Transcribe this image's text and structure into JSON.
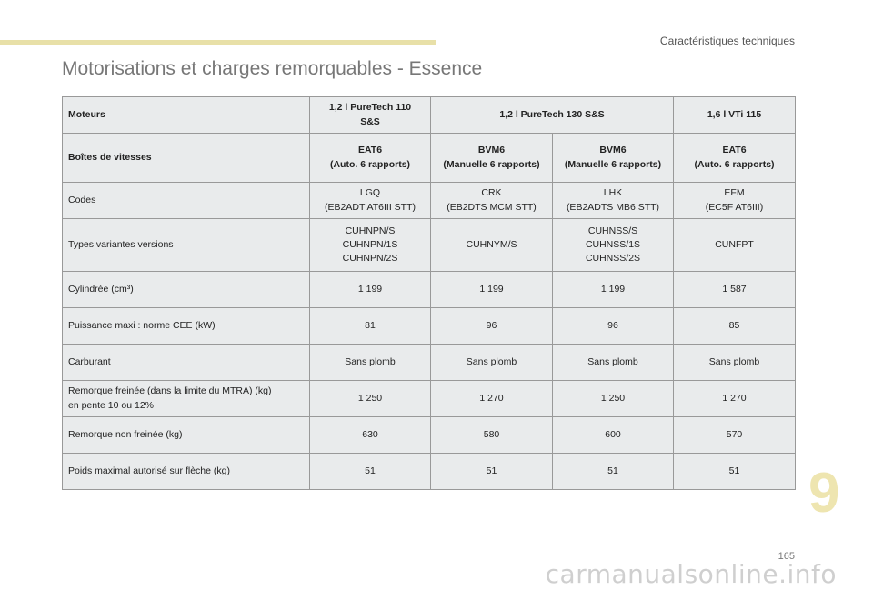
{
  "header": {
    "section_title": "Caractéristiques techniques",
    "page_title": "Motorisations et charges remorquables - Essence"
  },
  "table": {
    "rows": [
      {
        "label": "Moteurs",
        "values": [
          "1,2 l PureTech 110\nS&S",
          "1,2 l PureTech 130 S&S",
          "1,6 l VTi 115"
        ],
        "bold": true
      },
      {
        "label": "Boîtes de vitesses",
        "values": [
          "EAT6\n(Auto. 6 rapports)",
          "BVM6\n(Manuelle 6 rapports)",
          "BVM6\n(Manuelle 6 rapports)",
          "EAT6\n(Auto. 6 rapports)"
        ],
        "bold": true
      },
      {
        "label": "Codes",
        "values": [
          "LGQ\n(EB2ADT AT6III STT)",
          "CRK\n(EB2DTS MCM STT)",
          "LHK\n(EB2ADTS MB6 STT)",
          "EFM\n(EC5F AT6III)"
        ]
      },
      {
        "label": "Types variantes versions",
        "values": [
          "CUHNPN/S\nCUHNPN/1S\nCUHNPN/2S",
          "CUHNYM/S",
          "CUHNSS/S\nCUHNSS/1S\nCUHNSS/2S",
          "CUNFPT"
        ]
      },
      {
        "label": "Cylindrée (cm³)",
        "values": [
          "1 199",
          "1 199",
          "1 199",
          "1 587"
        ]
      },
      {
        "label": "Puissance maxi : norme CEE (kW)",
        "values": [
          "81",
          "96",
          "96",
          "85"
        ]
      },
      {
        "label": "Carburant",
        "values": [
          "Sans plomb",
          "Sans plomb",
          "Sans plomb",
          "Sans plomb"
        ]
      },
      {
        "label": "Remorque freinée (dans la limite du MTRA) (kg)\nen pente 10 ou 12%",
        "values": [
          "1 250",
          "1 270",
          "1 250",
          "1 270"
        ]
      },
      {
        "label": "Remorque non freinée (kg)",
        "values": [
          "630",
          "580",
          "600",
          "570"
        ]
      },
      {
        "label": "Poids maximal autorisé sur flèche (kg)",
        "values": [
          "51",
          "51",
          "51",
          "51"
        ]
      }
    ]
  },
  "footer": {
    "chapter_number": "9",
    "page_number": "165",
    "watermark": "carmanualsonline.info"
  },
  "colors": {
    "accent_bar": "#e8e0a8",
    "cell_background": "#e9ebec",
    "chapter_number": "#eee5b0"
  }
}
